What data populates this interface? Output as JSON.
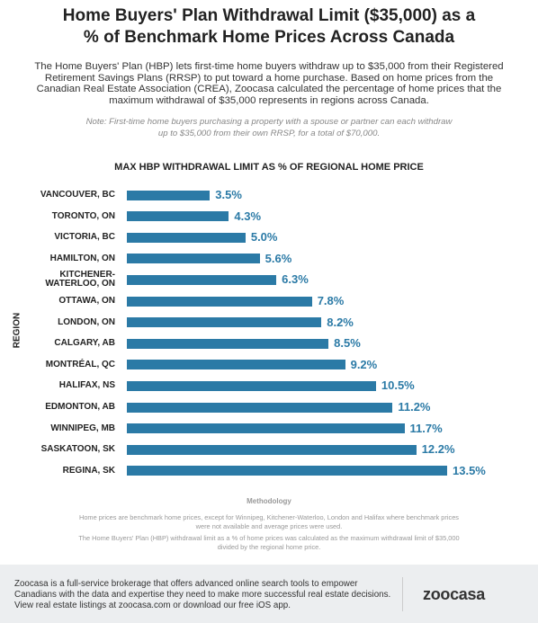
{
  "chart_data": {
    "type": "bar",
    "orientation": "horizontal",
    "title": "Home Buyers' Plan Withdrawal Limit ($35,000) as a % of Benchmark Home Prices Across Canada",
    "subtitle": "The Home Buyers' Plan (HBP) lets first-time home buyers withdraw up to $35,000 from their Registered Retirement Savings Plans (RRSP) to put toward a home purchase. Based on home prices from the Canadian Real Estate Association (CREA), Zoocasa calculated the percentage of home prices that the maximum withdrawal of $35,000 represents in regions across Canada.",
    "note": "Note: First-time home buyers purchasing a property with a spouse or partner can each withdraw up to $35,000 from their own RRSP, for a total of $70,000.",
    "chart_title": "MAX HBP WITHDRAWAL LIMIT AS % OF REGIONAL HOME PRICE",
    "ylabel": "REGION",
    "categories": [
      "VANCOUVER, BC",
      "TORONTO, ON",
      "VICTORIA, BC",
      "HAMILTON, ON",
      "KITCHENER-WATERLOO, ON",
      "OTTAWA, ON",
      "LONDON, ON",
      "CALGARY, AB",
      "MONTRÉAL, QC",
      "HALIFAX, NS",
      "EDMONTON, AB",
      "WINNIPEG, MB",
      "SASKATOON, SK",
      "REGINA, SK"
    ],
    "values": [
      3.5,
      4.3,
      5.0,
      5.6,
      6.3,
      7.8,
      8.2,
      8.5,
      9.2,
      10.5,
      11.2,
      11.7,
      12.2,
      13.5
    ],
    "value_labels": [
      "3.5%",
      "4.3%",
      "5.0%",
      "5.6%",
      "6.3%",
      "7.8%",
      "8.2%",
      "8.5%",
      "9.2%",
      "10.5%",
      "11.2%",
      "11.7%",
      "12.2%",
      "13.5%"
    ],
    "color": "#2b7aa6"
  },
  "methodology": {
    "heading": "Methodology",
    "texts": [
      "Home prices are benchmark home prices, except for Winnipeg, Kitchener-Waterloo, London and Halifax where benchmark prices were not available and average prices were used.",
      "The Home Buyers' Plan (HBP) withdrawal limit as a % of home prices was calculated as the maximum withdrawal limit of $35,000 divided by the regional home price."
    ]
  },
  "footer": {
    "text": "Zoocasa is a full-service brokerage that offers advanced online search tools to empower Canadians with the data and expertise they need to make more successful real estate decisions. View real estate listings at zoocasa.com or download our free iOS app.",
    "logo": "zoocasa"
  }
}
